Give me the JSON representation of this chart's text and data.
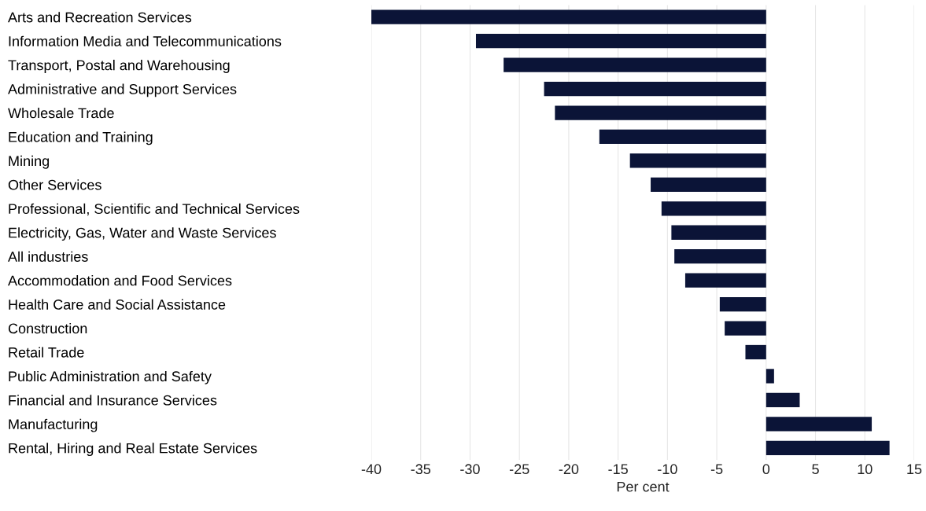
{
  "chart_data": {
    "type": "bar",
    "orientation": "horizontal",
    "xlabel": "Per cent",
    "categories": [
      "Arts and Recreation Services",
      "Information Media and Telecommunications",
      "Transport, Postal and Warehousing",
      "Administrative and Support Services",
      "Wholesale Trade",
      "Education and Training",
      "Mining",
      "Other Services",
      "Professional, Scientific and Technical Services",
      "Electricity, Gas, Water and Waste Services",
      "All industries",
      "Accommodation and Food Services",
      "Health Care and Social Assistance",
      "Construction",
      "Retail Trade",
      "Public Administration and Safety",
      "Financial and Insurance Services",
      "Manufacturing",
      "Rental, Hiring and Real Estate Services"
    ],
    "values": [
      -40.0,
      -29.4,
      -26.6,
      -22.5,
      -21.4,
      -16.9,
      -13.8,
      -11.7,
      -10.6,
      -9.6,
      -9.3,
      -8.2,
      -4.7,
      -4.2,
      -2.1,
      0.8,
      3.4,
      10.7,
      12.5
    ],
    "color": "#0b1437",
    "xlim": [
      -40,
      15
    ],
    "xticks": [
      -40,
      -35,
      -30,
      -25,
      -20,
      -15,
      -10,
      -5,
      0,
      5,
      10,
      15
    ],
    "grid": "x",
    "legend": false
  }
}
